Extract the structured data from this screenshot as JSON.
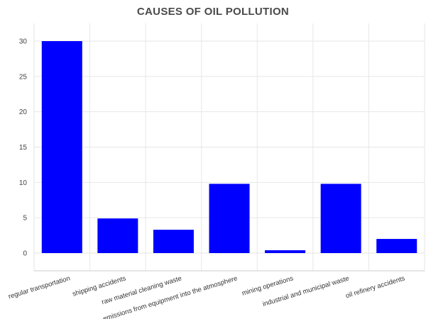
{
  "chart_data": {
    "type": "bar",
    "title": "CAUSES OF OIL POLLUTION",
    "xlabel": "",
    "ylabel": "",
    "categories": [
      "regular transportation",
      "shipping accidents",
      "raw material cleaning waste",
      "emissions from equipment into the atmosphere",
      "mining operations",
      "industrial and municipal waste",
      "oil refinery accidents"
    ],
    "values": [
      30,
      4.9,
      3.3,
      9.8,
      0.4,
      9.8,
      2
    ],
    "ylim": [
      0,
      32
    ],
    "yticks": [
      0,
      5,
      10,
      15,
      20,
      25,
      30
    ],
    "grid": true,
    "legend": "none",
    "bar_color": "#0000ff"
  }
}
